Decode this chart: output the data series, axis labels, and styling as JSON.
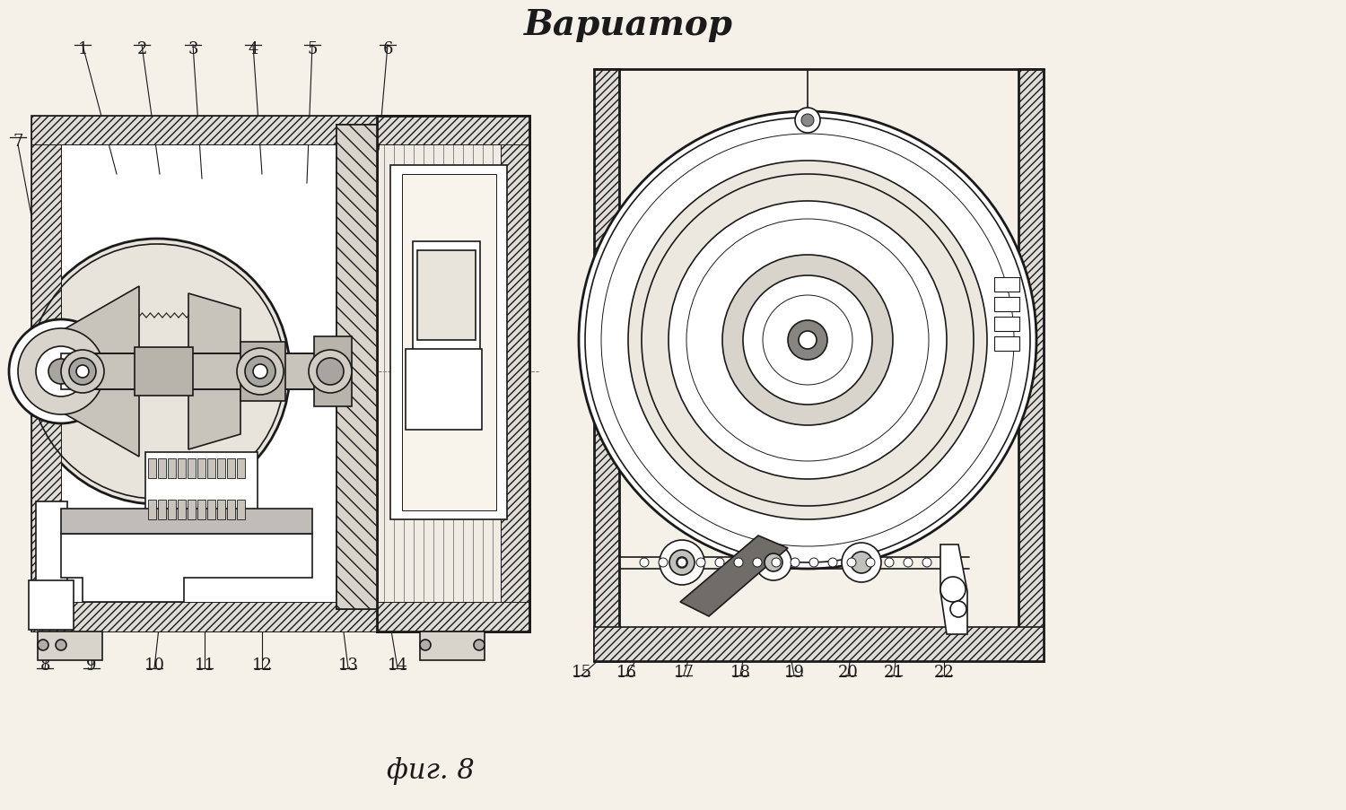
{
  "title": "Вариатор",
  "fig_label": "фиг. 8",
  "bg_color": "#f5f0e8",
  "line_color": "#1a1a1a",
  "title_fontsize": 28,
  "fig_label_fontsize": 22,
  "part_label_fontsize": 13
}
